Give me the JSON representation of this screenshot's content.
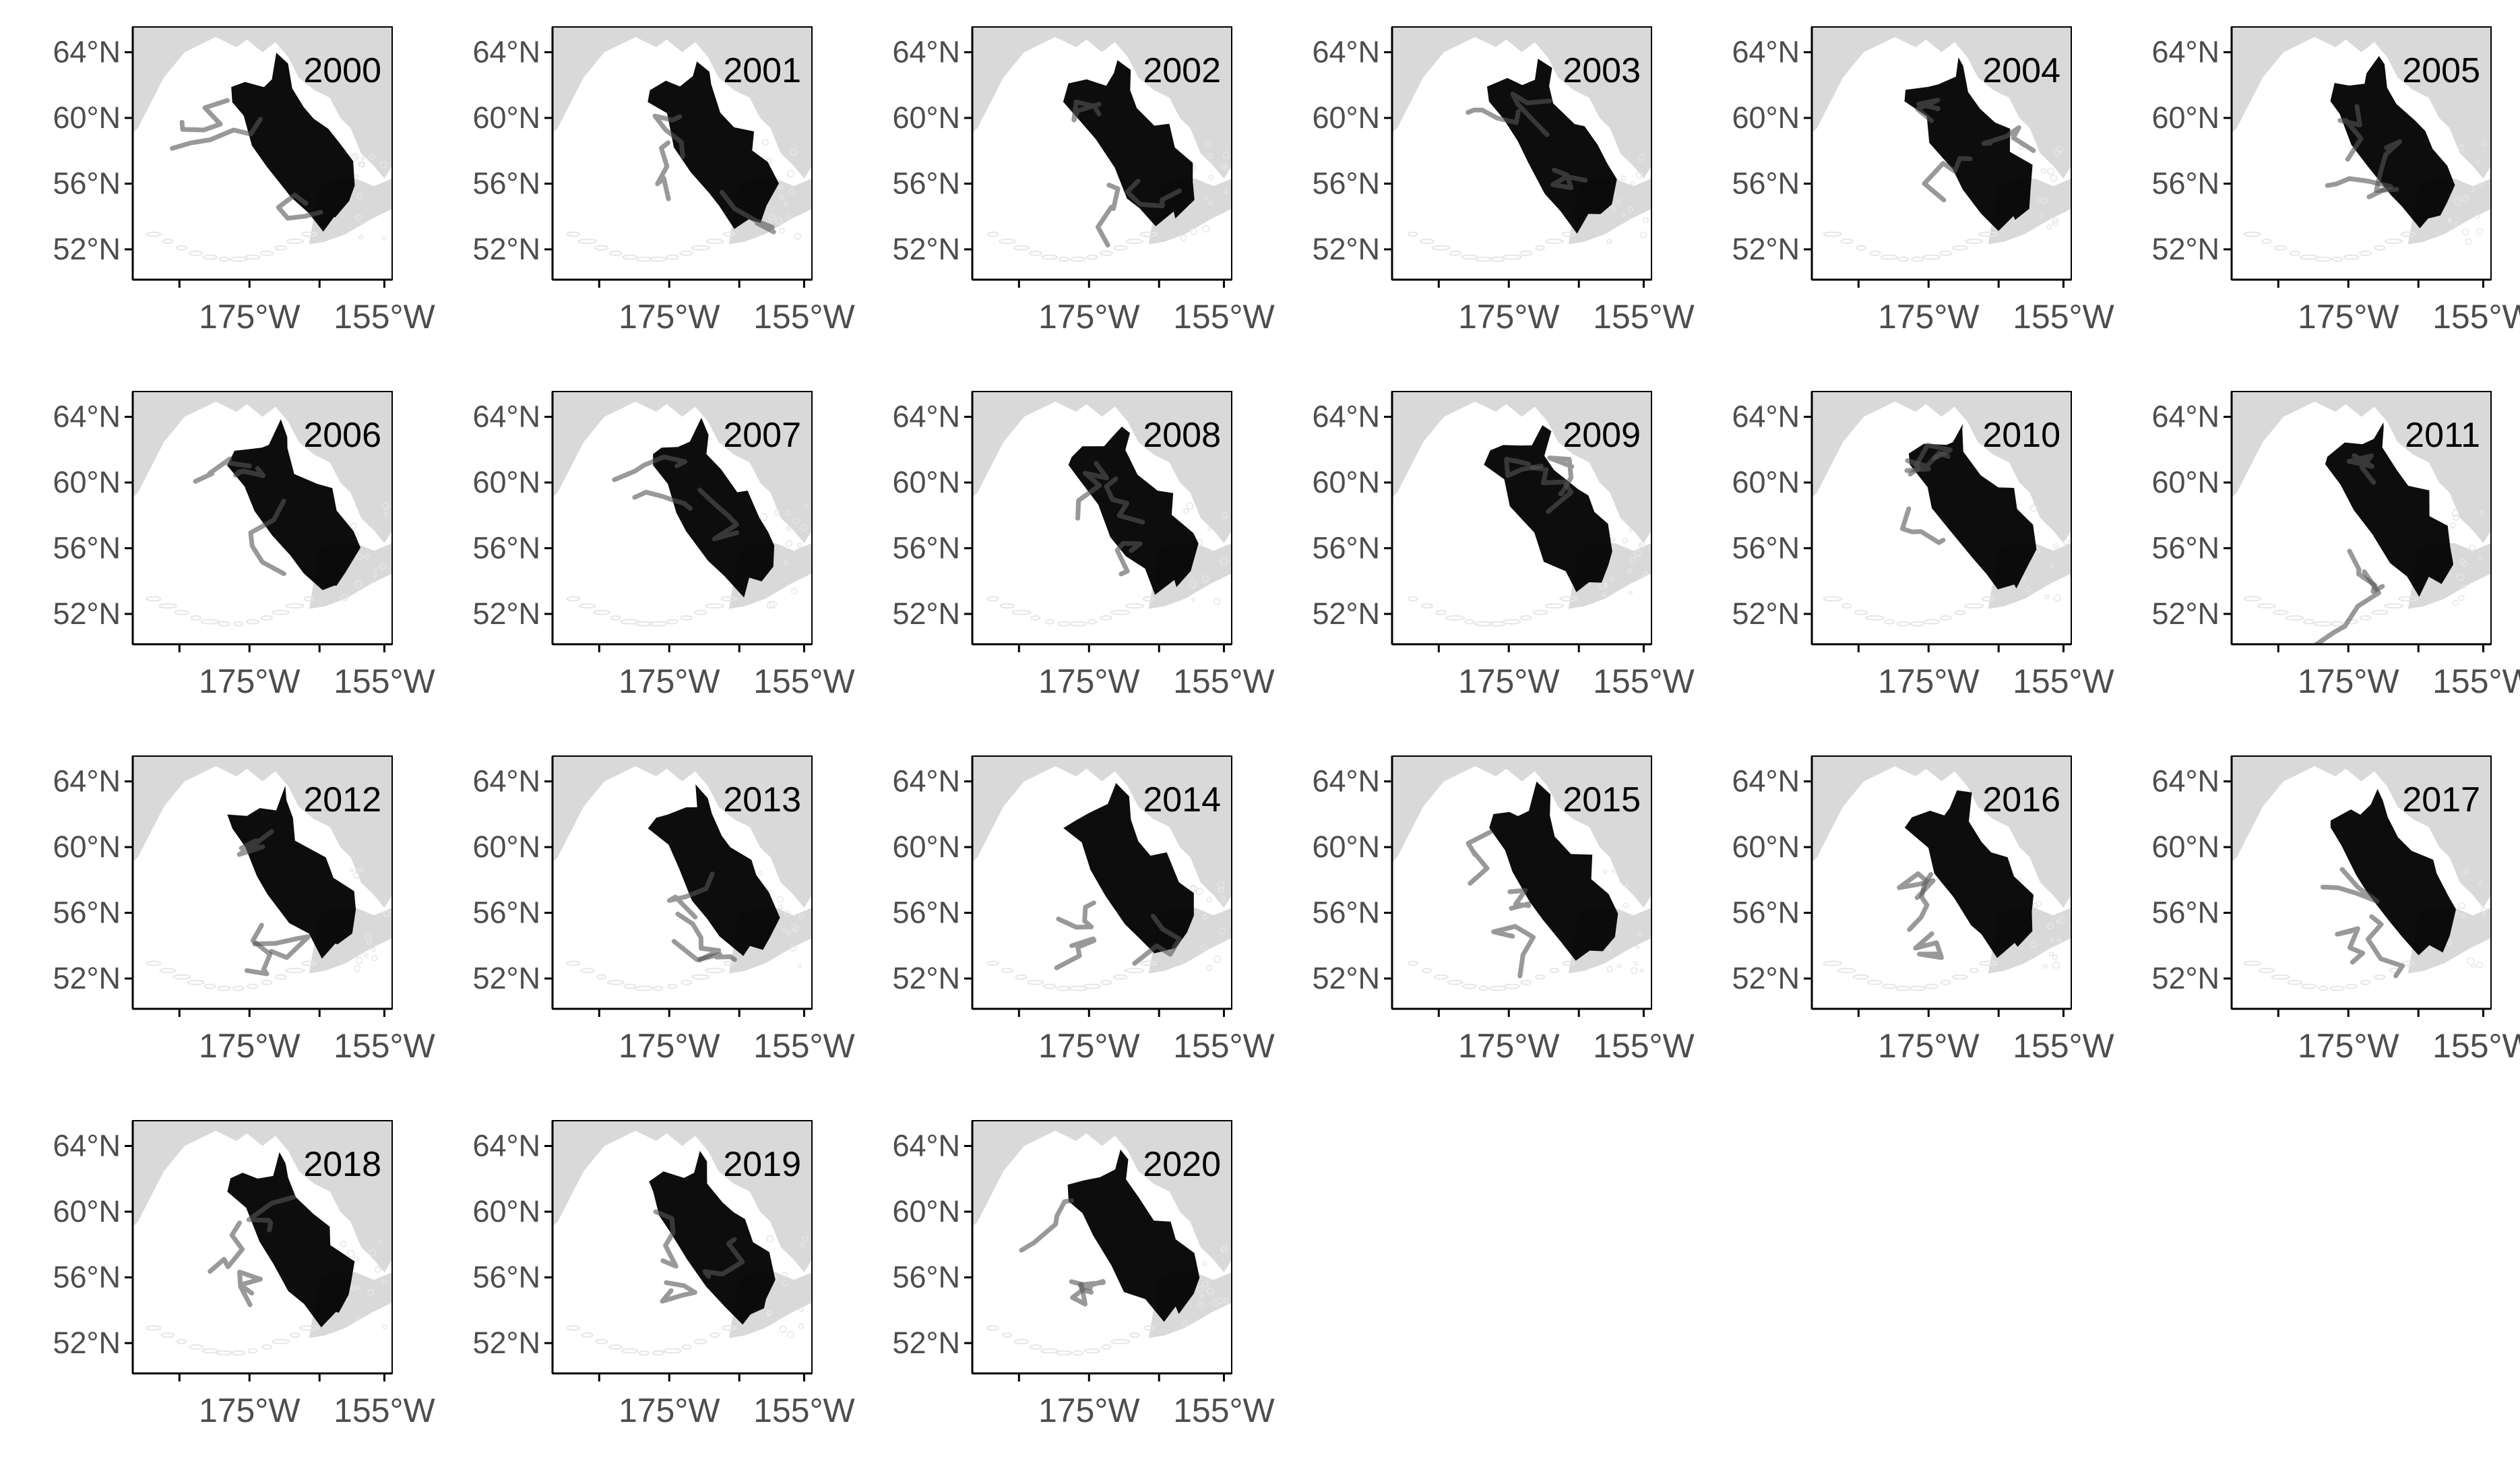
{
  "figure": {
    "columns": 6,
    "lat_ticks": [
      "64°N",
      "60°N",
      "56°N",
      "52°N"
    ],
    "lon_ticks": [
      "175°W",
      "155°W"
    ],
    "colors": {
      "land": "#d9d9d9",
      "coast_outline": "#e6e6e6",
      "tracks": "#000000",
      "stray_tracks": "#555555",
      "frame": "#000000",
      "tick_label": "#4d4d4d",
      "panel_label": "#000000",
      "background": "#ffffff"
    },
    "panels": [
      {
        "year": "2000"
      },
      {
        "year": "2001"
      },
      {
        "year": "2002"
      },
      {
        "year": "2003"
      },
      {
        "year": "2004"
      },
      {
        "year": "2005"
      },
      {
        "year": "2006"
      },
      {
        "year": "2007"
      },
      {
        "year": "2008"
      },
      {
        "year": "2009"
      },
      {
        "year": "2010"
      },
      {
        "year": "2011"
      },
      {
        "year": "2012"
      },
      {
        "year": "2013"
      },
      {
        "year": "2014"
      },
      {
        "year": "2015"
      },
      {
        "year": "2016"
      },
      {
        "year": "2017"
      },
      {
        "year": "2018"
      },
      {
        "year": "2019"
      },
      {
        "year": "2020"
      }
    ]
  }
}
